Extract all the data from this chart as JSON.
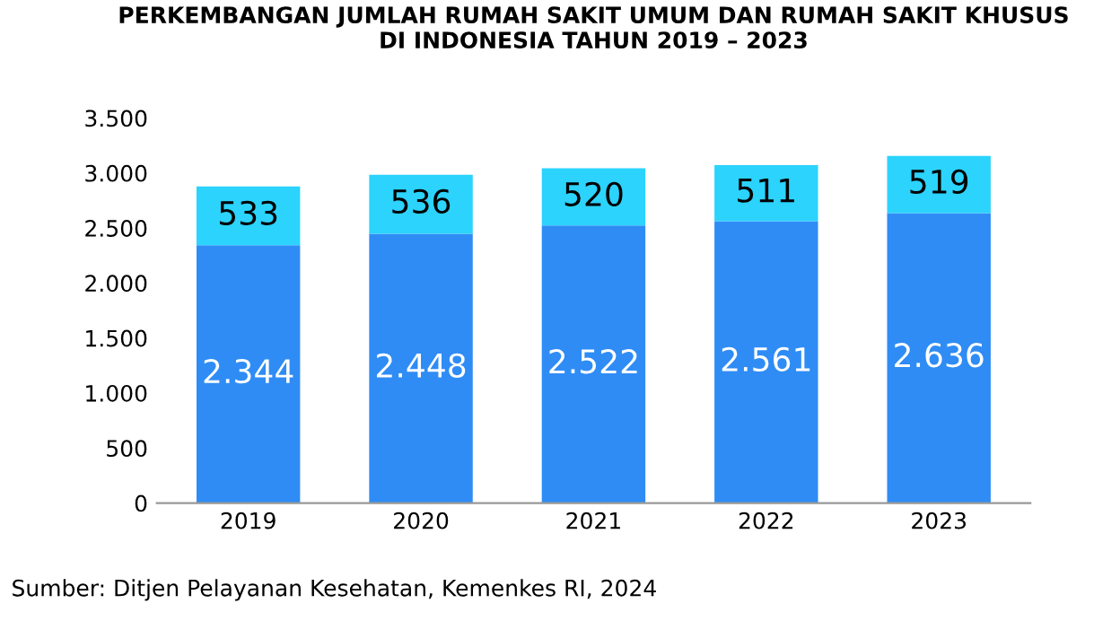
{
  "chart_data": {
    "type": "bar",
    "stacked": true,
    "title": "PERKEMBANGAN JUMLAH RUMAH SAKIT UMUM DAN RUMAH SAKIT KHUSUS\nDI INDONESIA TAHUN 2019 – 2023",
    "categories": [
      "2019",
      "2020",
      "2021",
      "2022",
      "2023"
    ],
    "series": [
      {
        "color": "#2f8cf5",
        "values": [
          2344,
          2448,
          2522,
          2561,
          2636
        ],
        "value_labels": [
          "2.344",
          "2.448",
          "2.522",
          "2.561",
          "2.636"
        ]
      },
      {
        "color": "#2bd3fd",
        "values": [
          533,
          536,
          520,
          511,
          519
        ],
        "value_labels": [
          "533",
          "536",
          "520",
          "511",
          "519"
        ]
      }
    ],
    "ylim": [
      0,
      3500
    ],
    "yticks": [
      0,
      {
        "value": 500,
        "label": "500"
      },
      {
        "value": 1000,
        "label": "1.000"
      },
      {
        "value": 1500,
        "label": "1.500"
      },
      {
        "value": 2000,
        "label": "2.000"
      },
      {
        "value": 2500,
        "label": "2.500"
      },
      {
        "value": 3000,
        "label": "3.000"
      },
      {
        "value": 3500,
        "label": "3.500"
      }
    ],
    "grid": false,
    "legend": false,
    "annotations": [
      "Sumber: Ditjen Pelayanan Kesehatan, Kemenkes RI, 2024"
    ]
  }
}
